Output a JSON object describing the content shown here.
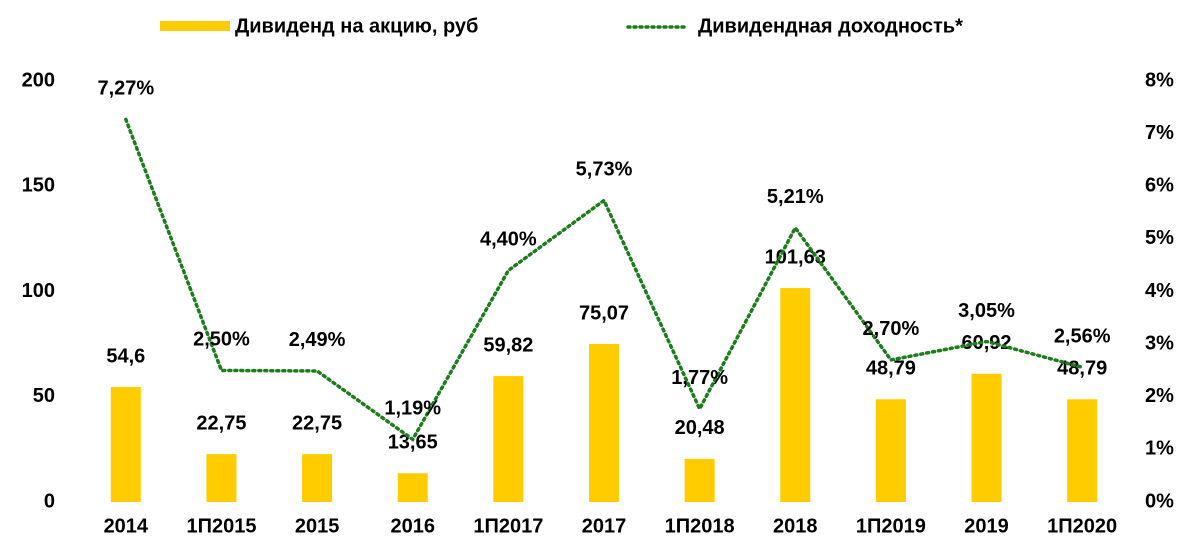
{
  "chart_data": {
    "type": "bar",
    "categories": [
      "2014",
      "1П2015",
      "2015",
      "2016",
      "1П2017",
      "2017",
      "1П2018",
      "2018",
      "1П2019",
      "2019",
      "1П2020"
    ],
    "series": [
      {
        "name": "Дивиденд на акцию, руб",
        "type": "bar",
        "color": "#ffcc00",
        "values": [
          54.6,
          22.75,
          22.75,
          13.65,
          59.82,
          75.07,
          20.48,
          101.63,
          48.79,
          60.92,
          48.79
        ],
        "value_labels": [
          "54,6",
          "22,75",
          "22,75",
          "13,65",
          "59,82",
          "75,07",
          "20,48",
          "101,63",
          "48,79",
          "60,92",
          "48,79"
        ]
      },
      {
        "name": "Дивидендная доходность*",
        "type": "line",
        "axis": "y2",
        "color": "#1e7b1e",
        "values": [
          7.27,
          2.5,
          2.49,
          1.19,
          4.4,
          5.73,
          1.77,
          5.21,
          2.7,
          3.05,
          2.56
        ],
        "value_labels": [
          "7,27%",
          "2,50%",
          "2,49%",
          "1,19%",
          "4,40%",
          "5,73%",
          "1,77%",
          "5,21%",
          "2,70%",
          "3,05%",
          "2,56%"
        ]
      }
    ],
    "ylim": [
      0,
      200
    ],
    "yticks": [
      0,
      50,
      100,
      150,
      200
    ],
    "y2lim": [
      0,
      8
    ],
    "y2ticks": [
      {
        "value": 0,
        "label": "0%"
      },
      {
        "value": 1,
        "label": "1%"
      },
      {
        "value": 2,
        "label": "2%"
      },
      {
        "value": 3,
        "label": "3%"
      },
      {
        "value": 4,
        "label": "4%"
      },
      {
        "value": 5,
        "label": "5%"
      },
      {
        "value": 6,
        "label": "6%"
      },
      {
        "value": 7,
        "label": "7%"
      },
      {
        "value": 8,
        "label": "8%"
      }
    ],
    "legend": "top",
    "grid": false
  }
}
